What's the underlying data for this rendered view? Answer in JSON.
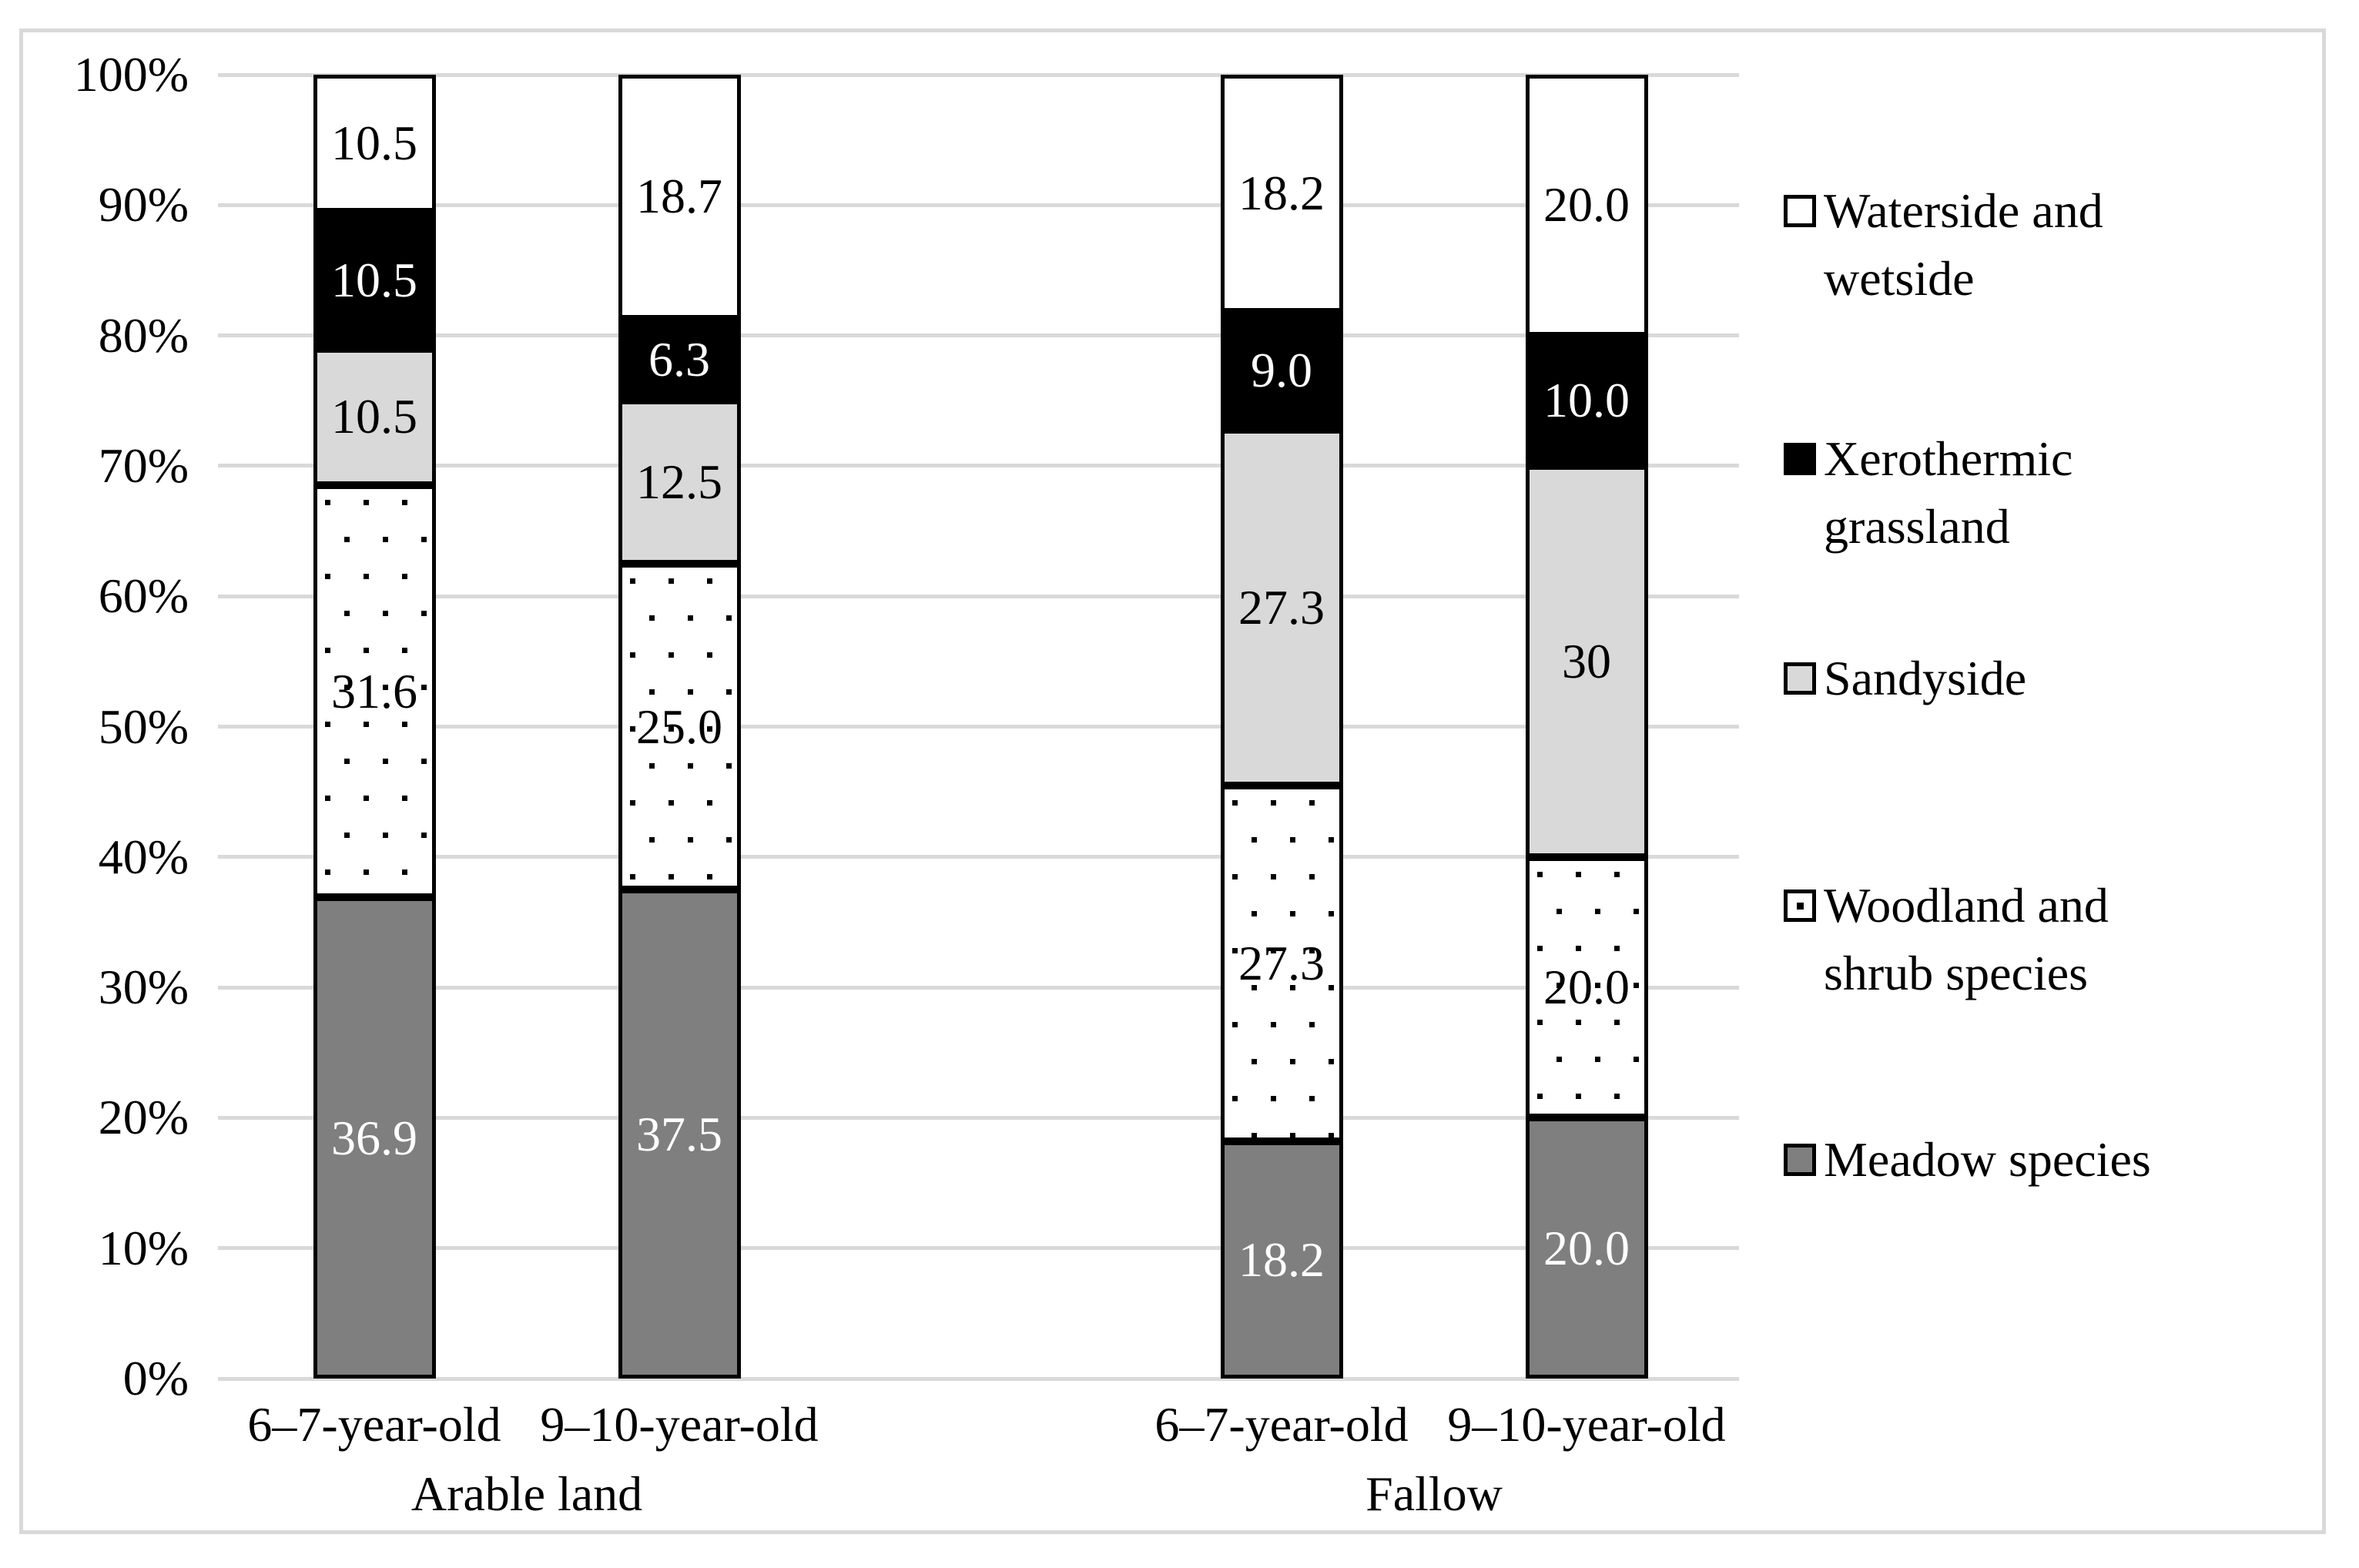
{
  "figure": {
    "background": "#ffffff",
    "border_color": "#d9d9d9"
  },
  "chart_data": {
    "type": "bar",
    "stacked": "100%",
    "title": "",
    "xlabel": "",
    "ylabel": "",
    "y_axis": {
      "min": 0,
      "max": 100,
      "tick_step": 10,
      "tick_labels": [
        "100%",
        "90%",
        "80%",
        "70%",
        "60%",
        "50%",
        "40%",
        "30%",
        "20%",
        "10%",
        "0%"
      ],
      "grid": true,
      "grid_color": "#d9d9d9"
    },
    "categories": [
      "6–7-year-old",
      "9–10-year-old",
      "6–7-year-old",
      "9–10-year-old"
    ],
    "group_labels": [
      "Arable land",
      "Fallow"
    ],
    "series": [
      {
        "name": "Meadow species",
        "fill": "#7f7f7f",
        "pattern": "solid",
        "label_color": "#ffffff",
        "values": [
          36.9,
          37.5,
          18.2,
          20.0
        ],
        "value_labels": [
          "36.9",
          "37.5",
          "18.2",
          "20.0"
        ]
      },
      {
        "name": "Woodland and shrub species",
        "fill": "#ffffff",
        "pattern": "square-dots",
        "label_color": "#000000",
        "values": [
          31.6,
          25.0,
          27.3,
          20.0
        ],
        "value_labels": [
          "31.6",
          "25.0",
          "27.3",
          "20.0"
        ]
      },
      {
        "name": "Sandyside",
        "fill": "#d9d9d9",
        "pattern": "solid",
        "label_color": "#000000",
        "values": [
          10.5,
          12.5,
          27.3,
          30
        ],
        "value_labels": [
          "10.5",
          "12.5",
          "27.3",
          "30"
        ]
      },
      {
        "name": "Xerothermic grassland",
        "fill": "#000000",
        "pattern": "solid",
        "label_color": "#ffffff",
        "values": [
          10.5,
          6.3,
          9.0,
          10.0
        ],
        "value_labels": [
          "10.5",
          "6.3",
          "9.0",
          "10.0"
        ]
      },
      {
        "name": "Waterside and wetside",
        "fill": "#ffffff",
        "pattern": "solid",
        "label_color": "#000000",
        "values": [
          10.5,
          18.7,
          18.2,
          20.0
        ],
        "value_labels": [
          "10.5",
          "18.7",
          "18.2",
          "20.0"
        ]
      }
    ],
    "legend": {
      "position": "right",
      "items": [
        {
          "series": "Waterside and wetside",
          "swatch": "white",
          "lines": [
            "Waterside and",
            "wetside"
          ]
        },
        {
          "series": "Xerothermic grassland",
          "swatch": "black",
          "lines": [
            "Xerothermic",
            "grassland"
          ]
        },
        {
          "series": "Sandyside",
          "swatch": "lightgray",
          "lines": [
            "Sandyside"
          ]
        },
        {
          "series": "Woodland and shrub species",
          "swatch": "dotted",
          "lines": [
            "Woodland and",
            "shrub species"
          ]
        },
        {
          "series": "Meadow species",
          "swatch": "gray",
          "lines": [
            "Meadow species"
          ]
        }
      ]
    }
  }
}
